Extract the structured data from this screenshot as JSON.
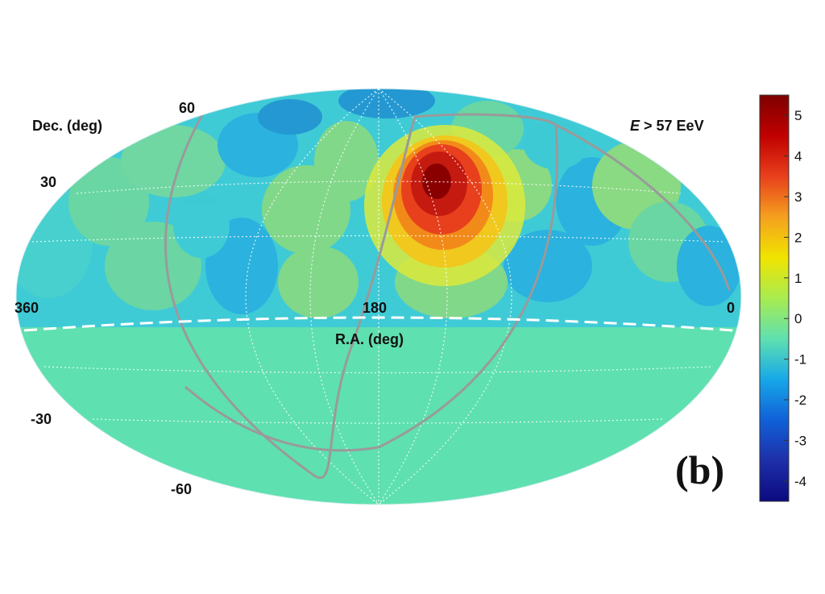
{
  "chart_data": {
    "type": "heatmap",
    "projection": "hammer-aitoff sky map",
    "energy_label_var": "E",
    "energy_label_rest": " > 57 EeV",
    "dec_axis_label": "Dec. (deg)",
    "ra_axis_label": "R.A. (deg)",
    "panel_label": "(b)",
    "ra_ticks": [
      "360",
      "180",
      "0"
    ],
    "dec_ticks": [
      "60",
      "30",
      "-30",
      "-60"
    ],
    "colorbar_ticks": [
      "5",
      "4",
      "3",
      "2",
      "1",
      "0",
      "-1",
      "-2",
      "-3",
      "-4"
    ],
    "colorbar_range": [
      -4.5,
      5.5
    ],
    "field_of_view_dec_limit": -10,
    "background_significance": 0,
    "hotspot": {
      "ra": 146.7,
      "dec": 43.2,
      "peak_significance": 5.1
    },
    "colors": {
      "max": "#7f0000",
      "high": "#e8401c",
      "mid_high": "#f0d400",
      "zero": "#5fe0b0",
      "low": "#17a8e8",
      "min": "#0b0a80",
      "galactic_plane": "#9a9a9a",
      "grid": "#ffffff"
    }
  }
}
